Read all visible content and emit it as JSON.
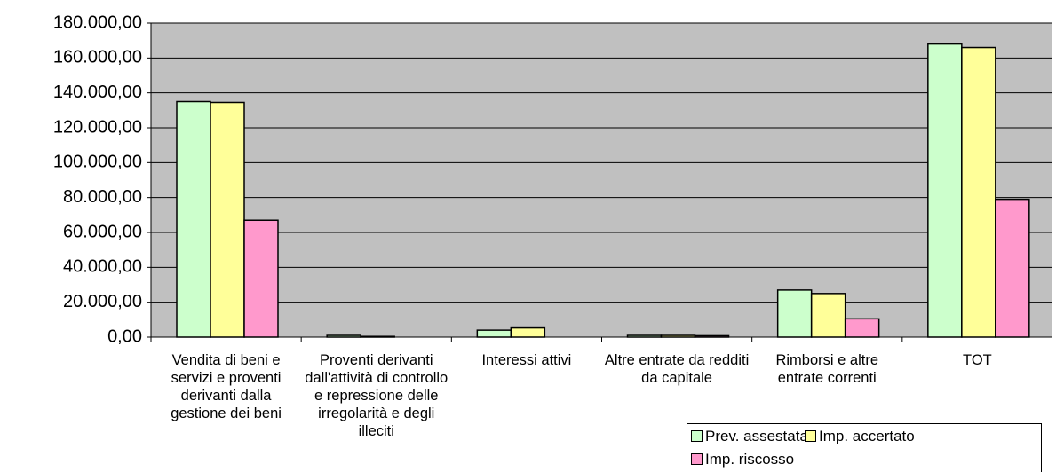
{
  "chart_data": {
    "type": "bar",
    "categories": [
      "Vendita di beni e servizi e proventi derivanti dalla gestione dei beni",
      "Proventi derivanti dall'attività di controllo e repressione delle irregolarità e degli illeciti",
      "Interessi attivi",
      "Altre entrate da redditi da capitale",
      "Rimborsi e altre entrate correnti",
      "TOT"
    ],
    "series": [
      {
        "name": "Prev. assestata",
        "color": "#ccffcc",
        "values": [
          135000,
          1000,
          4000,
          1000,
          27000,
          168000
        ]
      },
      {
        "name": "Imp. accertato",
        "color": "#ffff99",
        "values": [
          134500,
          400,
          5300,
          1000,
          25000,
          166000
        ]
      },
      {
        "name": "Imp. riscosso",
        "color": "#ff99cc",
        "values": [
          67000,
          0,
          0,
          800,
          10500,
          79000
        ]
      }
    ],
    "ylim": [
      0,
      180000
    ],
    "yticks": [
      {
        "value": 0,
        "label": "0,00"
      },
      {
        "value": 20000,
        "label": "20.000,00"
      },
      {
        "value": 40000,
        "label": "40.000,00"
      },
      {
        "value": 60000,
        "label": "60.000,00"
      },
      {
        "value": 80000,
        "label": "80.000,00"
      },
      {
        "value": 100000,
        "label": "100.000,00"
      },
      {
        "value": 120000,
        "label": "120.000,00"
      },
      {
        "value": 140000,
        "label": "140.000,00"
      },
      {
        "value": 160000,
        "label": "160.000,00"
      },
      {
        "value": 180000,
        "label": "180.000,00"
      }
    ],
    "grid": true,
    "plot_background": "#c0c0c0",
    "legend_position": "bottom-right"
  }
}
